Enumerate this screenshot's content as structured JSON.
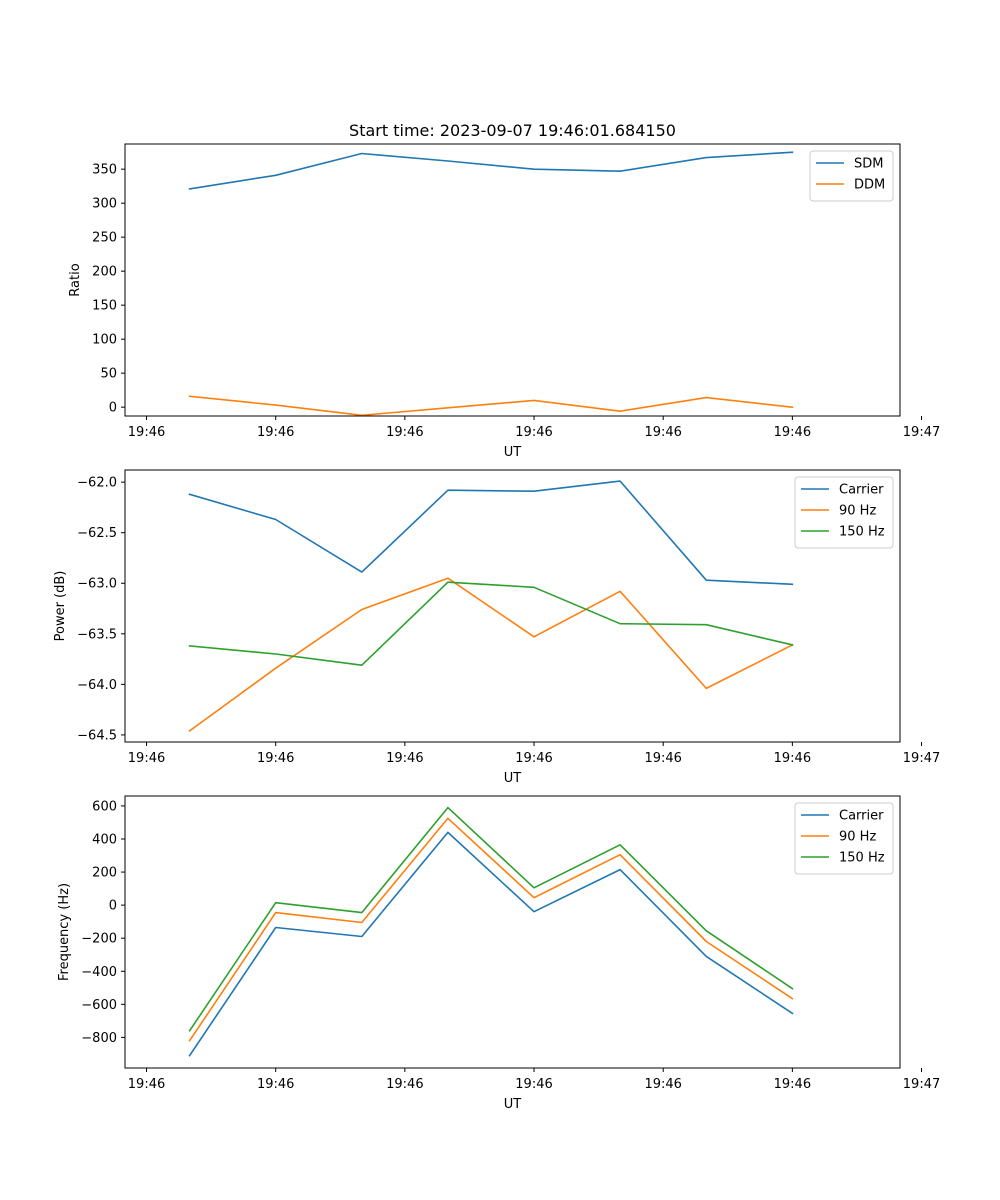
{
  "chart_data": [
    {
      "type": "line",
      "title": "Start time: 2023-09-07 19:46:01.684150",
      "xlabel": "UT",
      "ylabel": "Ratio",
      "x": [
        1,
        2,
        3,
        4,
        5,
        6,
        7,
        8
      ],
      "xlim": [
        0.25,
        9.25
      ],
      "xticks": [
        0.5,
        2,
        3.5,
        5,
        6.5,
        8,
        9.5
      ],
      "xtick_labels": [
        "19:46",
        "19:46",
        "19:46",
        "19:46",
        "19:46",
        "19:46",
        "19:47"
      ],
      "ylim": [
        -13,
        387
      ],
      "yticks": [
        0,
        50,
        100,
        150,
        200,
        250,
        300,
        350
      ],
      "ytick_labels": [
        "0",
        "50",
        "100",
        "150",
        "200",
        "250",
        "300",
        "350"
      ],
      "legend_position": "top-right",
      "series": [
        {
          "name": "SDM",
          "color": "#1f77b4",
          "values": [
            321,
            341,
            373,
            362,
            350,
            347,
            367,
            375
          ]
        },
        {
          "name": "DDM",
          "color": "#ff7f0e",
          "values": [
            16,
            3,
            -12,
            -1,
            10,
            -6,
            14,
            0
          ]
        }
      ]
    },
    {
      "type": "line",
      "title": "",
      "xlabel": "UT",
      "ylabel": "Power (dB)",
      "x": [
        1,
        2,
        3,
        4,
        5,
        6,
        7,
        8
      ],
      "xlim": [
        0.25,
        9.25
      ],
      "xticks": [
        0.5,
        2,
        3.5,
        5,
        6.5,
        8,
        9.5
      ],
      "xtick_labels": [
        "19:46",
        "19:46",
        "19:46",
        "19:46",
        "19:46",
        "19:46",
        "19:47"
      ],
      "ylim": [
        -64.57,
        -61.88
      ],
      "yticks": [
        -64.5,
        -64.0,
        -63.5,
        -63.0,
        -62.5,
        -62.0
      ],
      "ytick_labels": [
        "−64.5",
        "−64.0",
        "−63.5",
        "−63.0",
        "−62.5",
        "−62.0"
      ],
      "legend_position": "top-right",
      "series": [
        {
          "name": "Carrier",
          "color": "#1f77b4",
          "values": [
            -62.12,
            -62.37,
            -62.89,
            -62.08,
            -62.09,
            -61.99,
            -62.97,
            -63.01
          ]
        },
        {
          "name": "90 Hz",
          "color": "#ff7f0e",
          "values": [
            -64.46,
            -63.84,
            -63.26,
            -62.95,
            -63.53,
            -63.08,
            -64.04,
            -63.61
          ]
        },
        {
          "name": "150 Hz",
          "color": "#2ca02c",
          "values": [
            -63.62,
            -63.7,
            -63.81,
            -62.99,
            -63.04,
            -63.4,
            -63.41,
            -63.61
          ]
        }
      ]
    },
    {
      "type": "line",
      "title": "",
      "xlabel": "UT",
      "ylabel": "Frequency (Hz)",
      "x": [
        1,
        2,
        3,
        4,
        5,
        6,
        7,
        8
      ],
      "xlim": [
        0.25,
        9.25
      ],
      "xticks": [
        0.5,
        2,
        3.5,
        5,
        6.5,
        8,
        9.5
      ],
      "xtick_labels": [
        "19:46",
        "19:46",
        "19:46",
        "19:46",
        "19:46",
        "19:46",
        "19:47"
      ],
      "ylim": [
        -985,
        660
      ],
      "yticks": [
        -800,
        -600,
        -400,
        -200,
        0,
        200,
        400,
        600
      ],
      "ytick_labels": [
        "−800",
        "−600",
        "−400",
        "−200",
        "0",
        "200",
        "400",
        "600"
      ],
      "legend_position": "top-right",
      "series": [
        {
          "name": "Carrier",
          "color": "#1f77b4",
          "values": [
            -910,
            -135,
            -190,
            440,
            -40,
            215,
            -310,
            -655
          ]
        },
        {
          "name": "90 Hz",
          "color": "#ff7f0e",
          "values": [
            -820,
            -45,
            -105,
            525,
            45,
            305,
            -220,
            -565
          ]
        },
        {
          "name": "150 Hz",
          "color": "#2ca02c",
          "values": [
            -760,
            15,
            -45,
            590,
            105,
            365,
            -155,
            -505
          ]
        }
      ]
    }
  ]
}
